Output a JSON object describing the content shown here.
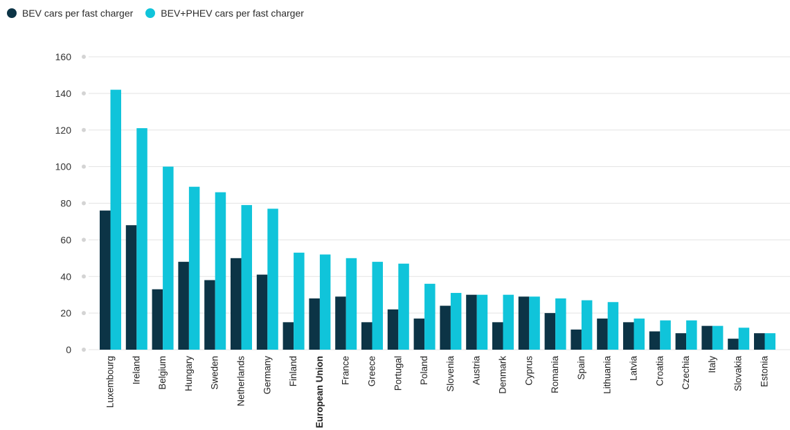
{
  "colors": {
    "bev": "#0c3446",
    "bev_phev": "#10c4da",
    "grid": "#e3e3e3",
    "tick_dot": "#d4d4d4"
  },
  "legend": [
    {
      "label": "BEV cars per fast charger",
      "color": "#0c3446"
    },
    {
      "label": "BEV+PHEV cars per fast charger",
      "color": "#10c4da"
    }
  ],
  "chart_data": {
    "type": "bar",
    "title": "",
    "xlabel": "",
    "ylabel": "",
    "ylim": [
      0,
      160
    ],
    "yticks": [
      0,
      20,
      40,
      60,
      80,
      100,
      120,
      140,
      160
    ],
    "grid": true,
    "legend_position": "top-left",
    "highlight_category": "European Union",
    "categories": [
      "Luxembourg",
      "Ireland",
      "Belgium",
      "Hungary",
      "Sweden",
      "Netherlands",
      "Germany",
      "Finland",
      "European Union",
      "France",
      "Greece",
      "Portugal",
      "Poland",
      "Slovenia",
      "Austria",
      "Denmark",
      "Cyprus",
      "Romania",
      "Spain",
      "Lithuania",
      "Latvia",
      "Croatia",
      "Czechia",
      "Italy",
      "Slovakia",
      "Estonia"
    ],
    "series": [
      {
        "name": "BEV cars per fast charger",
        "values": [
          76,
          68,
          33,
          48,
          38,
          50,
          41,
          15,
          28,
          29,
          15,
          22,
          17,
          24,
          30,
          15,
          29,
          20,
          11,
          17,
          15,
          10,
          9,
          13,
          6,
          9
        ]
      },
      {
        "name": "BEV+PHEV cars per fast charger",
        "values": [
          142,
          121,
          100,
          89,
          86,
          79,
          77,
          53,
          52,
          50,
          48,
          47,
          36,
          31,
          30,
          30,
          29,
          28,
          27,
          26,
          17,
          16,
          16,
          13,
          12,
          9
        ]
      }
    ]
  }
}
